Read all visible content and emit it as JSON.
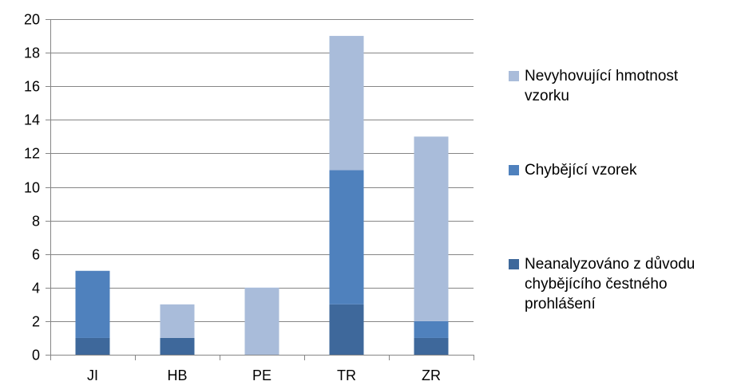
{
  "chart_data": {
    "type": "bar",
    "stacked": true,
    "categories": [
      "JI",
      "HB",
      "PE",
      "TR",
      "ZR"
    ],
    "ylim": [
      0,
      20
    ],
    "yticks": [
      0,
      2,
      4,
      6,
      8,
      10,
      12,
      14,
      16,
      18,
      20
    ],
    "grid": true,
    "legend_position": "right",
    "series": [
      {
        "name": "Neanalyzováno z důvodu chybějícího čestného prohlášení",
        "legend_lines": [
          "Neanalyzováno z důvodu",
          "chybějícího čestného",
          "prohlášení"
        ],
        "color": "#3e689b",
        "values": [
          1,
          1,
          0,
          3,
          1
        ]
      },
      {
        "name": "Chybějící vzorek",
        "legend_lines": [
          "Chybějící vzorek"
        ],
        "color": "#4f81bd",
        "values": [
          4,
          0,
          0,
          8,
          1
        ]
      },
      {
        "name": "Nevyhovující hmotnost vzorku",
        "legend_lines": [
          "Nevyhovující hmotnost",
          "vzorku"
        ],
        "color": "#a9bcda",
        "values": [
          0,
          2,
          4,
          8,
          11
        ]
      }
    ]
  }
}
